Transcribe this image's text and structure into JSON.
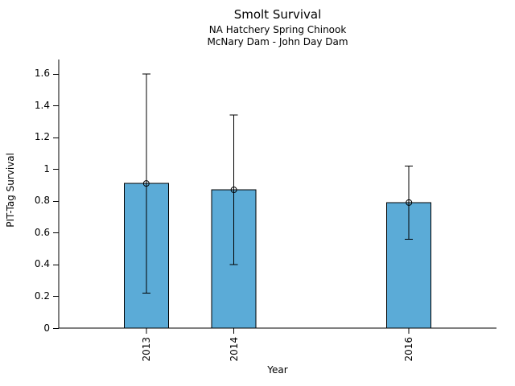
{
  "chart_data": {
    "type": "bar",
    "title": "Smolt Survival",
    "subtitle_line1": "NA Hatchery Spring Chinook",
    "subtitle_line2": "McNary Dam - John Day Dam",
    "xlabel": "Year",
    "ylabel": "PIT-Tag Survival",
    "categories": [
      "2013",
      "2014",
      "2016"
    ],
    "x": [
      2013,
      2014,
      2016
    ],
    "values": [
      0.91,
      0.87,
      0.79
    ],
    "error_low": [
      0.22,
      0.4,
      0.56
    ],
    "error_high": [
      1.6,
      1.34,
      1.02
    ],
    "yticks": [
      0,
      0.2,
      0.4,
      0.6,
      0.8,
      1,
      1.2,
      1.4,
      1.6
    ],
    "ytick_labels": [
      "0",
      "0.2",
      "0.4",
      "0.6",
      "0.8",
      "1",
      "1.2",
      "1.4",
      "1.6"
    ],
    "xlim": [
      2012,
      2017
    ],
    "ylim": [
      0,
      1.69
    ],
    "bar_width_years": 0.505,
    "bar_color": "#5BABD7",
    "bar_edge_color": "#000000",
    "errorbar_color": "#000000",
    "marker": "open-circle",
    "grid": false,
    "legend_position": "none"
  }
}
